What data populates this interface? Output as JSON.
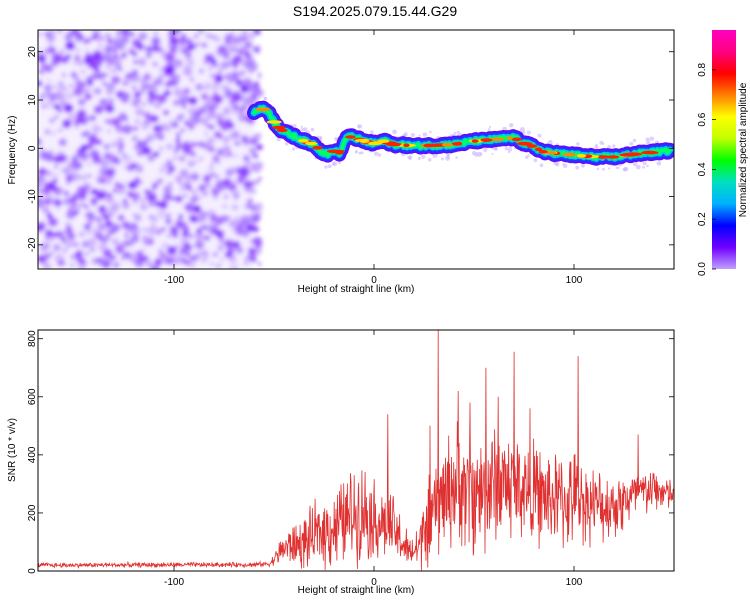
{
  "title": "S194.2025.079.15.44.G29",
  "chart_data": [
    {
      "type": "heatmap",
      "xlabel": "Height of straight line (km)",
      "ylabel": "Frequency (Hz)",
      "xlim": [
        -168,
        150
      ],
      "ylim": [
        -25,
        24.5
      ],
      "xticks": [
        -100,
        0,
        100
      ],
      "yticks": [
        -20,
        -10,
        0,
        10,
        20
      ],
      "noise_region_x": [
        -168,
        -60
      ],
      "ridge": {
        "x": [
          -60,
          -57,
          -53,
          -50,
          -47,
          -44,
          -40,
          -35,
          -30,
          -26,
          -23,
          -20,
          -17,
          -14,
          -11,
          -7,
          -3,
          0,
          5,
          10,
          20,
          30,
          40,
          50,
          60,
          70,
          75,
          80,
          85,
          90,
          95,
          100,
          110,
          120,
          130,
          140,
          148
        ],
        "y": [
          7.5,
          8.2,
          7.8,
          5.5,
          4.0,
          3.2,
          2.5,
          1.5,
          0.8,
          -0.8,
          -1.2,
          -0.5,
          -1.0,
          2.2,
          2.4,
          1.8,
          1.2,
          1.0,
          1.5,
          0.8,
          0.5,
          0.6,
          0.8,
          1.5,
          1.8,
          2.2,
          1.0,
          0.3,
          -0.8,
          -1.0,
          -1.2,
          -1.4,
          -1.8,
          -1.8,
          -1.2,
          -0.8,
          -0.5
        ]
      },
      "colorbar": {
        "label": "Normalized spectral amplitude",
        "ticks": [
          0.0,
          0.2,
          0.4,
          0.6,
          0.8
        ],
        "range": [
          0,
          0.96
        ],
        "colors": [
          "#c0a0ff",
          "#7000ff",
          "#0000ff",
          "#00b0ff",
          "#00e0c0",
          "#00ff00",
          "#c0ff00",
          "#ffff00",
          "#ff8000",
          "#ff0000",
          "#ff0080",
          "#ff00c0"
        ]
      }
    },
    {
      "type": "line",
      "xlabel": "Height of straight line (km)",
      "ylabel": "SNR (10 * v/v)",
      "xlim": [
        -168,
        150
      ],
      "ylim": [
        0,
        830
      ],
      "xticks": [
        -100,
        0,
        100
      ],
      "yticks": [
        0,
        200,
        400,
        600,
        800
      ],
      "color": "#e03030",
      "envelope": {
        "x": [
          -168,
          -60,
          -52,
          -45,
          -40,
          -35,
          -30,
          -25,
          -20,
          -15,
          -10,
          -5,
          0,
          5,
          10,
          15,
          18,
          22,
          26,
          30,
          35,
          40,
          45,
          50,
          55,
          60,
          65,
          70,
          75,
          80,
          85,
          90,
          95,
          100,
          105,
          110,
          115,
          120,
          125,
          130,
          135,
          140,
          145,
          150
        ],
        "mean": [
          20,
          22,
          25,
          80,
          90,
          95,
          120,
          140,
          150,
          170,
          200,
          210,
          180,
          160,
          140,
          90,
          60,
          80,
          140,
          200,
          260,
          300,
          280,
          260,
          280,
          300,
          310,
          290,
          290,
          270,
          250,
          250,
          240,
          250,
          240,
          230,
          220,
          230,
          240,
          260,
          270,
          280,
          270,
          260
        ],
        "amp": [
          10,
          10,
          10,
          70,
          90,
          110,
          130,
          150,
          170,
          180,
          200,
          200,
          170,
          150,
          140,
          100,
          60,
          110,
          170,
          200,
          230,
          250,
          250,
          250,
          260,
          250,
          240,
          230,
          220,
          210,
          200,
          200,
          200,
          190,
          170,
          150,
          140,
          140,
          130,
          110,
          100,
          90,
          80,
          60
        ]
      },
      "peaks": [
        {
          "x": 32,
          "y": 830
        },
        {
          "x": 28,
          "y": 500
        },
        {
          "x": 42,
          "y": 620
        },
        {
          "x": 48,
          "y": 580
        },
        {
          "x": 56,
          "y": 700
        },
        {
          "x": 62,
          "y": 600
        },
        {
          "x": 70,
          "y": 755
        },
        {
          "x": 78,
          "y": 560
        },
        {
          "x": 102,
          "y": 740
        },
        {
          "x": 7,
          "y": 540
        },
        {
          "x": 132,
          "y": 470
        }
      ]
    }
  ]
}
